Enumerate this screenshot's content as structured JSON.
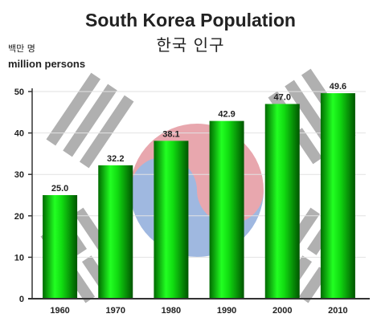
{
  "chart_data": {
    "type": "bar",
    "title": "South Korea Population",
    "subtitle": "한국  인구",
    "ylabel_ko": "백만 명",
    "ylabel": "million persons",
    "categories": [
      "1960",
      "1970",
      "1980",
      "1990",
      "2000",
      "2010"
    ],
    "values": [
      25.0,
      32.2,
      38.1,
      42.9,
      47.0,
      49.6
    ],
    "value_labels": [
      "25.0",
      "32.2",
      "38.1",
      "42.9",
      "47.0",
      "49.6"
    ],
    "ylim": [
      0,
      50
    ],
    "yticks": [
      "0",
      "10",
      "20",
      "30",
      "40",
      "50"
    ],
    "grid": true,
    "colors": {
      "bar_mid": "#22ff22",
      "bar_dark": "#006600",
      "flag_red": "#e8a7ae",
      "flag_blue": "#9fb8e0",
      "trigram": "#b0b0b0"
    }
  }
}
